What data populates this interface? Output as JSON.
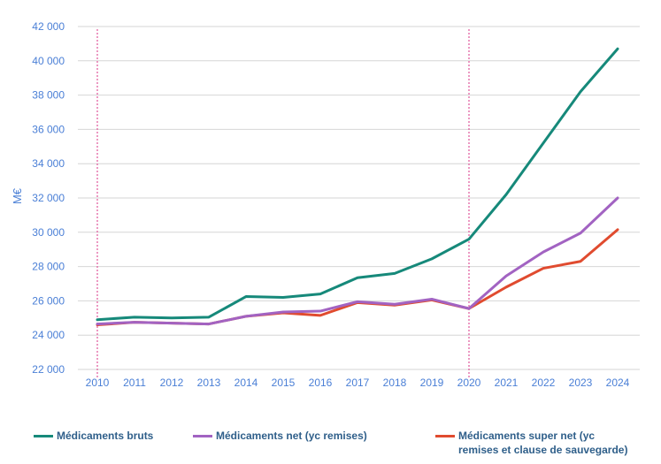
{
  "chart_data": {
    "type": "line",
    "title": "",
    "xlabel": "",
    "ylabel": "M€",
    "ylim": [
      22000,
      42000
    ],
    "yticks": [
      "22 000",
      "24 000",
      "26 000",
      "28 000",
      "30 000",
      "32 000",
      "34 000",
      "36 000",
      "38 000",
      "40 000",
      "42 000"
    ],
    "ytick_values": [
      22000,
      24000,
      26000,
      28000,
      30000,
      32000,
      34000,
      36000,
      38000,
      40000,
      42000
    ],
    "categories": [
      "2010",
      "2011",
      "2012",
      "2013",
      "2014",
      "2015",
      "2016",
      "2017",
      "2018",
      "2019",
      "2020",
      "2021",
      "2022",
      "2023",
      "2024"
    ],
    "grid": "horizontal",
    "legend_position": "bottom",
    "reference_lines": [
      "2010",
      "2020"
    ],
    "reference_line_color": "#e0559a",
    "series": [
      {
        "name": "Médicaments  bruts",
        "color": "#16897a",
        "values": [
          24900,
          25050,
          25000,
          25050,
          26250,
          26200,
          26400,
          27350,
          27600,
          28450,
          29600,
          32200,
          35200,
          38200,
          40700
        ]
      },
      {
        "name": "Médicaments  net (yc remises)",
        "color": "#a263c2",
        "values": [
          24650,
          24750,
          24700,
          24650,
          25100,
          25350,
          25400,
          25950,
          25800,
          26100,
          25550,
          27450,
          28850,
          29950,
          32000
        ]
      },
      {
        "name": "Médicaments  super net (yc remises et clause de sauvegarde)",
        "name_line1": "Médicaments  super net (yc",
        "name_line2": "remises et clause de sauvegarde)",
        "color": "#e04b2f",
        "values": [
          24600,
          24750,
          24700,
          24650,
          25100,
          25300,
          25150,
          25900,
          25750,
          26050,
          25550,
          26800,
          27900,
          28300,
          30150
        ]
      }
    ]
  }
}
